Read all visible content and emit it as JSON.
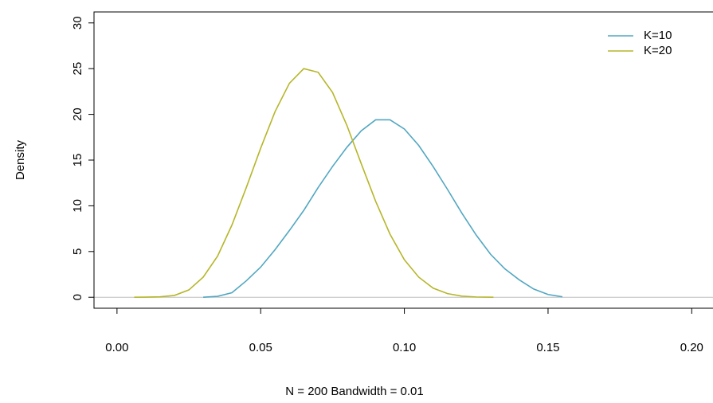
{
  "chart_data": {
    "type": "line",
    "xlabel": "N = 200   Bandwidth = 0.01",
    "ylabel": "Density",
    "xlim": [
      -0.008,
      0.2074
    ],
    "ylim": [
      -1.2,
      31.2
    ],
    "xticks": [
      {
        "value": 0,
        "label": "0.00"
      },
      0.05,
      {
        "value": 0.1,
        "label": "0.10"
      },
      0.15,
      {
        "value": 0.2,
        "label": "0.20"
      }
    ],
    "yticks": [
      0,
      5,
      10,
      15,
      20,
      25,
      30
    ],
    "legend": "top-right",
    "series": [
      {
        "name": "K=10",
        "color": "#52a7c2",
        "x": [
          0.03,
          0.035,
          0.04,
          0.045,
          0.05,
          0.055,
          0.06,
          0.065,
          0.07,
          0.075,
          0.08,
          0.085,
          0.09,
          0.095,
          0.1,
          0.105,
          0.11,
          0.115,
          0.12,
          0.125,
          0.13,
          0.135,
          0.14,
          0.145,
          0.15,
          0.155
        ],
        "values": [
          0,
          0.1,
          0.5,
          1.8,
          3.3,
          5.2,
          7.3,
          9.5,
          12,
          14.3,
          16.4,
          18.2,
          19.4,
          19.4,
          18.4,
          16.6,
          14.3,
          11.8,
          9.2,
          6.8,
          4.7,
          3.1,
          1.9,
          0.9,
          0.3,
          0.05
        ]
      },
      {
        "name": "K=20",
        "color": "#b6b62a",
        "x": [
          0.006,
          0.01,
          0.015,
          0.02,
          0.025,
          0.03,
          0.035,
          0.04,
          0.045,
          0.05,
          0.055,
          0.06,
          0.065,
          0.07,
          0.075,
          0.08,
          0.085,
          0.09,
          0.095,
          0.1,
          0.105,
          0.11,
          0.115,
          0.12,
          0.125,
          0.131
        ],
        "values": [
          0,
          0.01,
          0.05,
          0.2,
          0.8,
          2.2,
          4.5,
          7.9,
          12,
          16.3,
          20.3,
          23.4,
          25,
          24.6,
          22.4,
          18.8,
          14.6,
          10.5,
          6.9,
          4.1,
          2.2,
          1,
          0.4,
          0.12,
          0.03,
          0
        ]
      }
    ]
  }
}
